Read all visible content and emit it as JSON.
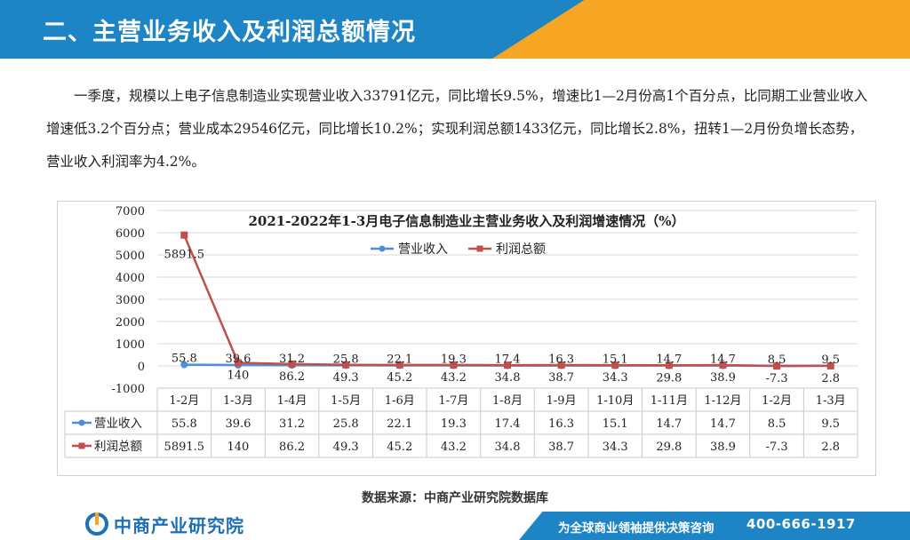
{
  "header": {
    "title": "二、主营业务收入及利润总额情况"
  },
  "paragraph": "一季度，规模以上电子信息制造业实现营业收入33791亿元，同比增长9.5%，增速比1—2月份高1个百分点，比同期工业营业收入增速低3.2个百分点；营业成本29546亿元，同比增长10.2%；实现利润总额1433亿元，同比增长2.8%，扭转1—2月份负增长态势，营业收入利润率为4.2%。",
  "source": "数据来源：中商产业研究院数据库",
  "footer": {
    "logo_text": "中商产业研究院",
    "slogan": "为全球商业领袖提供决策咨询",
    "phone": "400-666-1917"
  },
  "colors": {
    "header": "#1d85c6",
    "accent": "#f6a623",
    "revenue": "#4a90d9",
    "profit": "#c0504d"
  },
  "chart_data": {
    "type": "line",
    "title": "2021-2022年1-3月电子信息制造业主营业务收入及利润增速情况（%）",
    "categories": [
      "1-2月",
      "1-3月",
      "1-4月",
      "1-5月",
      "1-6月",
      "1-7月",
      "1-8月",
      "1-9月",
      "1-10月",
      "1-11月",
      "1-12月",
      "1-2月",
      "1-3月"
    ],
    "series": [
      {
        "name": "营业收入",
        "values": [
          55.8,
          39.6,
          31.2,
          25.8,
          22.1,
          19.3,
          17.4,
          16.3,
          15.1,
          14.7,
          14.7,
          8.5,
          9.5
        ],
        "labels": [
          "55.8",
          "39.6",
          "31.2",
          "25.8",
          "22.1",
          "19.3",
          "17.4",
          "16.3",
          "15.1",
          "14.7",
          "14.7",
          "8.5",
          "9.5"
        ]
      },
      {
        "name": "利润总额",
        "values": [
          5891.5,
          140,
          86.2,
          49.3,
          45.2,
          43.2,
          34.8,
          38.7,
          34.3,
          29.8,
          38.9,
          -7.3,
          2.8
        ],
        "labels": [
          "5891.5",
          "140",
          "86.2",
          "49.3",
          "45.2",
          "43.2",
          "34.8",
          "38.7",
          "34.3",
          "29.8",
          "38.9",
          "-7.3",
          "2.8"
        ]
      }
    ],
    "ylim": [
      -1000,
      7000
    ],
    "yticks": [
      "-1000",
      "0",
      "1000",
      "2000",
      "3000",
      "4000",
      "5000",
      "6000",
      "7000"
    ],
    "legend": "top",
    "grid": true,
    "data_table": true
  }
}
